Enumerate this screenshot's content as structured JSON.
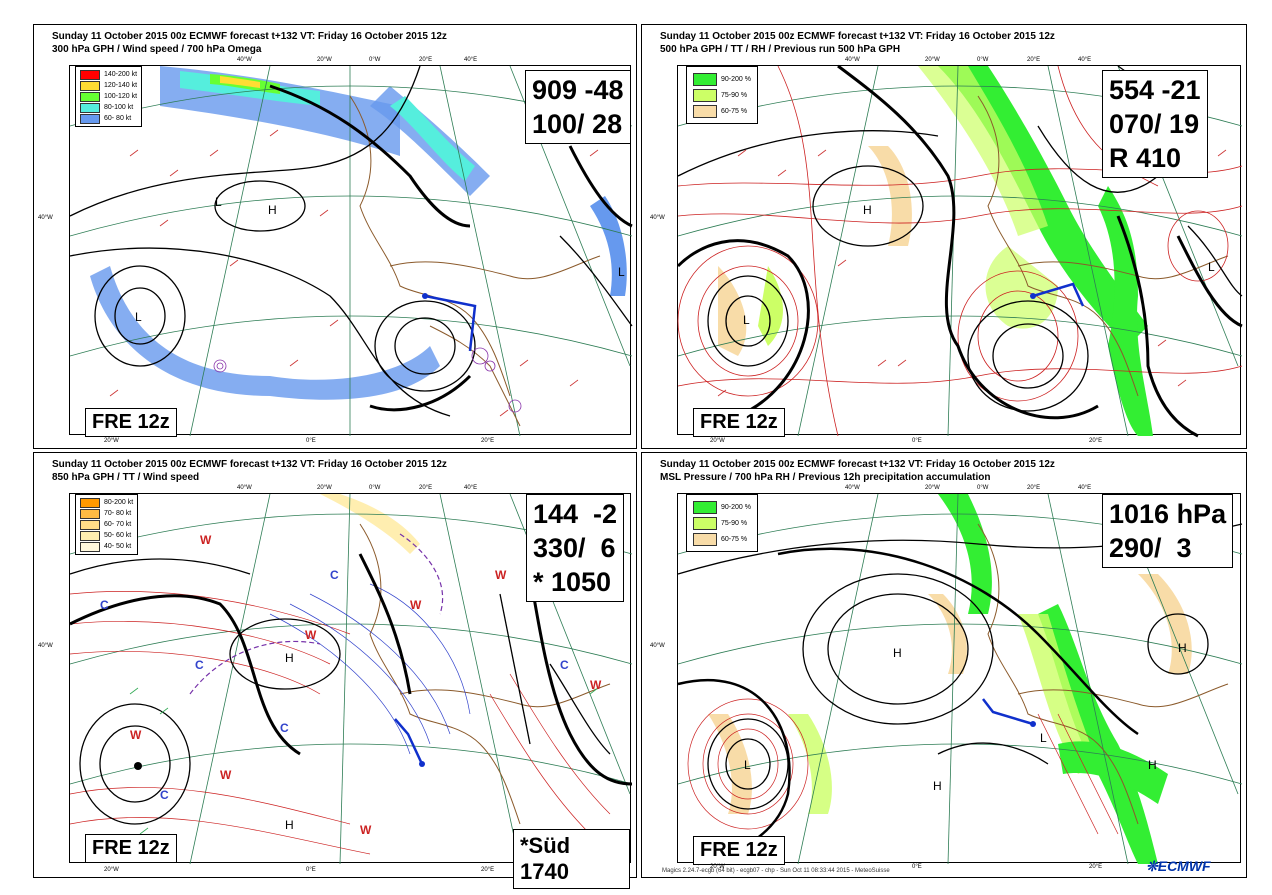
{
  "panels": [
    {
      "header1": "Sunday    11 October   2015 00z ECMWF forecast t+132  VT: Friday    16 October   2015 12z",
      "header2": "300 hPa GPH / Wind speed / 700 hPa Omega",
      "legend": [
        {
          "label": "140-200 kt",
          "color": "#ff0000"
        },
        {
          "label": "120-140 kt",
          "color": "#ffdd33"
        },
        {
          "label": "100-120 kt",
          "color": "#66ff33"
        },
        {
          "label": "80-100 kt",
          "color": "#55eedd"
        },
        {
          "label": "60- 80 kt",
          "color": "#6699ee"
        }
      ],
      "info": "909 -48\n100/ 28",
      "station": "FRE 12z",
      "lon_labels": [
        "40°W",
        "20°W",
        "0°W",
        "20°E",
        "40°E",
        "40°W",
        "20°W",
        "0°E",
        "20°E"
      ]
    },
    {
      "header1": "Sunday    11 October   2015 00z ECMWF forecast t+132  VT: Friday    16 October   2015 12z",
      "header2": "500 hPa GPH / TT / RH / Previous run 500 hPa GPH",
      "legend": [
        {
          "label": "90-200 %",
          "color": "#33ee33"
        },
        {
          "label": "75-90 %",
          "color": "#ccff66"
        },
        {
          "label": "60-75 %",
          "color": "#f8dca8"
        }
      ],
      "info": "554 -21\n070/ 19\nR 410",
      "station": "FRE 12z",
      "lon_labels": [
        "40°W",
        "20°W",
        "0°W",
        "20°E",
        "40°E",
        "40°W",
        "20°W",
        "0°E",
        "20°E"
      ]
    },
    {
      "header1": "Sunday    11 October   2015 00z ECMWF forecast t+132  VT: Friday    16 October   2015 12z",
      "header2": "850 hPa GPH / TT / Wind speed",
      "legend": [
        {
          "label": "80-200 kt",
          "color": "#ff9900"
        },
        {
          "label": "70- 80 kt",
          "color": "#ffbb44"
        },
        {
          "label": "60- 70 kt",
          "color": "#ffdd88"
        },
        {
          "label": "50- 60 kt",
          "color": "#ffeeb0"
        },
        {
          "label": "40- 50 kt",
          "color": "#fff8dd"
        }
      ],
      "info": "144  -2\n330/  6\n* 1050",
      "station": "FRE 12z",
      "extra": "*Süd 1740",
      "lon_labels": [
        "40°W",
        "20°W",
        "0°W",
        "20°E",
        "40°E",
        "40°W",
        "20°W",
        "0°E",
        "20°E"
      ]
    },
    {
      "header1": "Sunday    11 October   2015 00z ECMWF forecast t+132  VT: Friday    16 October   2015 12z",
      "header2": "MSL Pressure / 700 hPa RH / Previous 12h precipitation accumulation",
      "legend": [
        {
          "label": "90-200 %",
          "color": "#33ee33"
        },
        {
          "label": "75-90 %",
          "color": "#ccff66"
        },
        {
          "label": "60-75 %",
          "color": "#f8dca8"
        }
      ],
      "info": "1016 hPa\n290/  3",
      "station": "FRE 12z",
      "footer": "Magics 2.24.7-ecgb (64 bit) - ecgb07 - chp - Sun Oct 11 08:33:44 2015 - MeteoSuisse",
      "logo": "ECMWF",
      "lon_labels": [
        "40°W",
        "20°W",
        "0°W",
        "20°E",
        "40°E",
        "40°W",
        "20°W",
        "0°E",
        "20°E"
      ]
    }
  ],
  "colors": {
    "contour": "#000000",
    "coast": "#8b5a2b",
    "grid": "#2e7d55",
    "wind": "#cc3333",
    "station": "#1030cc",
    "temp_warm": "#cc2222",
    "temp_cold": "#3344cc"
  }
}
